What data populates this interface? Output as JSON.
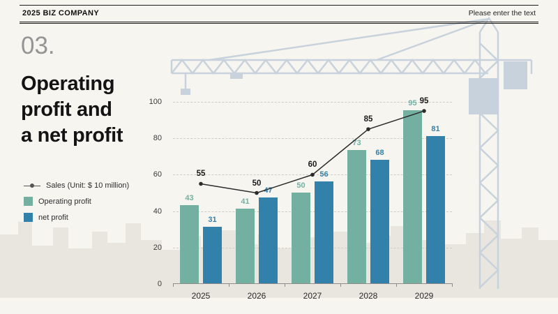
{
  "header": {
    "company": "2025 BIZ COMPANY",
    "right_note": "Please enter the text"
  },
  "slide": {
    "number": "03.",
    "title_lines": [
      "Operating",
      "profit and",
      "a net profit"
    ]
  },
  "legend": [
    {
      "label": "Sales (Unit: $ 10 million)",
      "type": "line",
      "color": "#2b2b2b"
    },
    {
      "label": "Operating profit",
      "type": "square",
      "color": "#74b0a2"
    },
    {
      "label": "net profit",
      "type": "square",
      "color": "#3181ab"
    }
  ],
  "chart_data": {
    "type": "bar",
    "subtype": "grouped-bars-with-line-overlay",
    "categories": [
      "2025",
      "2026",
      "2027",
      "2028",
      "2029"
    ],
    "series": [
      {
        "name": "Operating profit",
        "type": "bar",
        "color": "#74b0a2",
        "values": [
          43,
          41,
          50,
          73,
          95
        ]
      },
      {
        "name": "net profit",
        "type": "bar",
        "color": "#3181ab",
        "values": [
          31,
          47,
          56,
          68,
          81
        ]
      },
      {
        "name": "Sales (Unit: $ 10 million)",
        "type": "line",
        "color": "#2b2b2b",
        "values": [
          55,
          50,
          60,
          85,
          95
        ]
      }
    ],
    "ylim": [
      0,
      100
    ],
    "yticks": [
      0,
      20,
      40,
      60,
      80,
      100
    ],
    "grid": true,
    "legend_position": "left"
  },
  "colors": {
    "background": "#f7f5f0",
    "crane_silhouette": "#c8d2dc",
    "skyline": "#e9e6e0"
  }
}
